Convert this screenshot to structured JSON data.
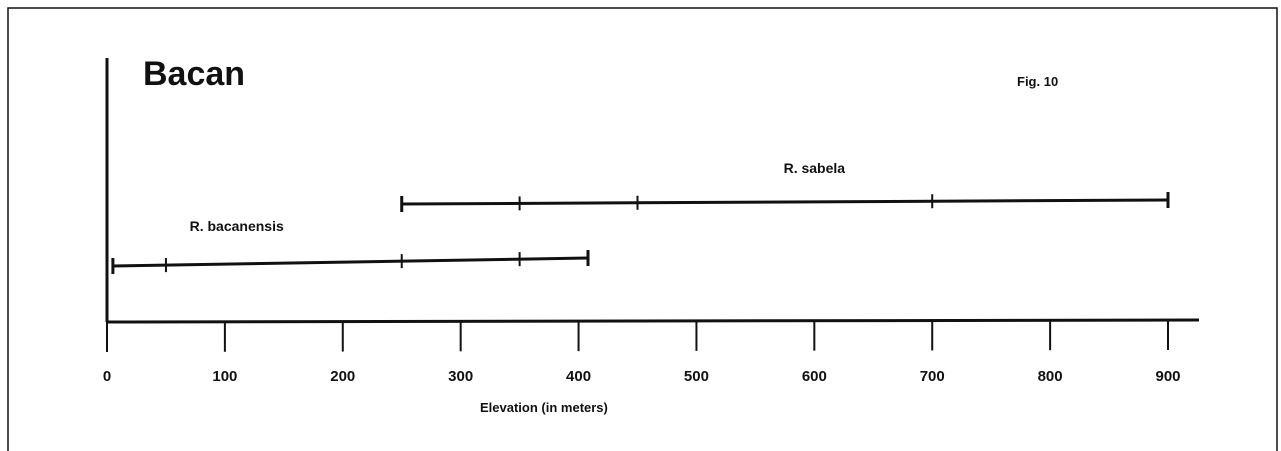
{
  "chart_data": {
    "type": "range",
    "title": "Bacan",
    "figure_label": "Fig. 10",
    "xlabel": "Elevation (in meters)",
    "xlim": [
      0,
      900
    ],
    "xticks": [
      0,
      100,
      200,
      300,
      400,
      500,
      600,
      700,
      800,
      900
    ],
    "grid": false,
    "series": [
      {
        "name": "R. sabela",
        "range": [
          250,
          900
        ],
        "marks": [
          350,
          450,
          700
        ]
      },
      {
        "name": "R. bacanensis",
        "range": [
          5,
          408
        ],
        "marks": [
          50,
          250,
          350
        ]
      }
    ]
  }
}
